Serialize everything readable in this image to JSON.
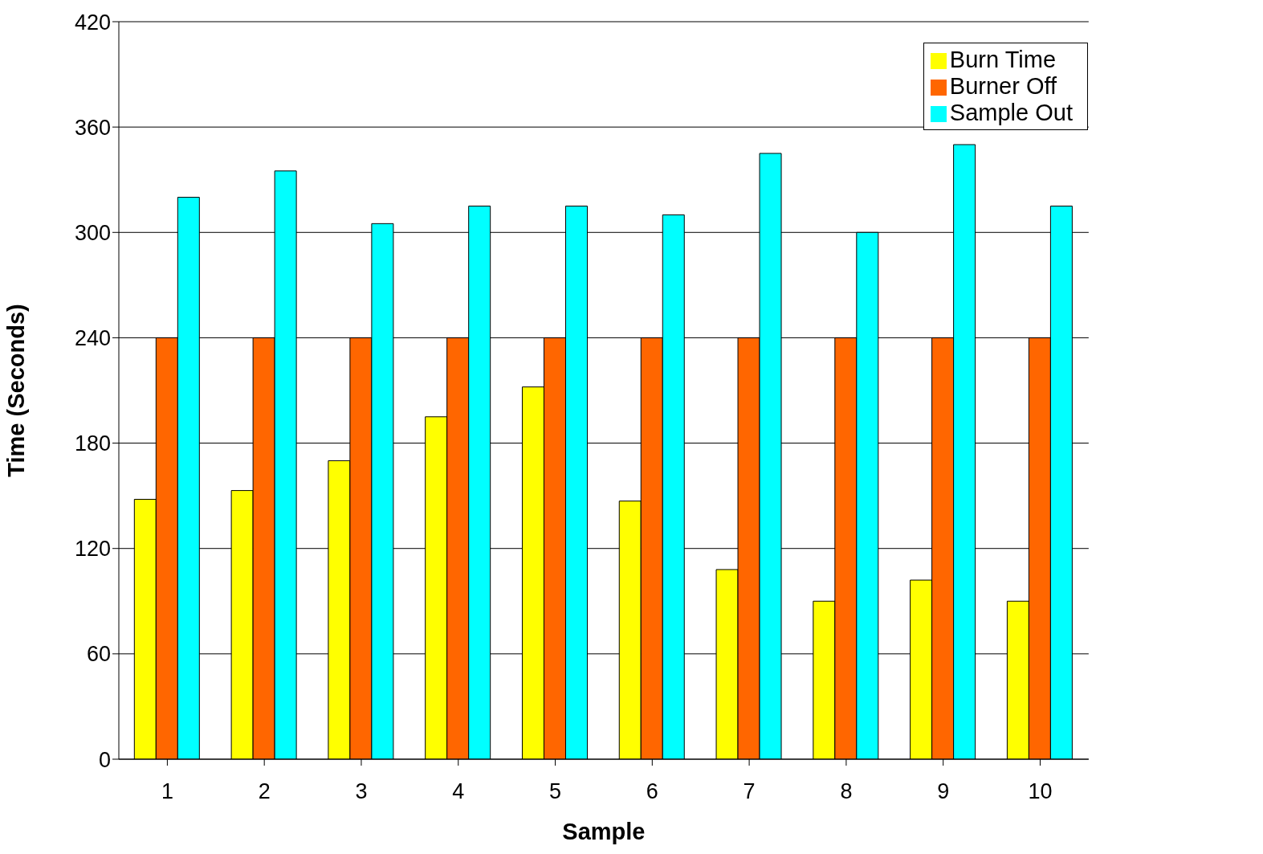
{
  "chart_data": {
    "type": "bar",
    "xlabel": "Sample",
    "ylabel": "Time (Seconds)",
    "categories": [
      "1",
      "2",
      "3",
      "4",
      "5",
      "6",
      "7",
      "8",
      "9",
      "10"
    ],
    "series": [
      {
        "name": "Burn Time",
        "color": "#ffff00",
        "values": [
          148,
          153,
          170,
          195,
          212,
          147,
          108,
          90,
          102,
          90
        ]
      },
      {
        "name": "Burner Off",
        "color": "#ff6600",
        "values": [
          240,
          240,
          240,
          240,
          240,
          240,
          240,
          240,
          240,
          240
        ]
      },
      {
        "name": "Sample Out",
        "color": "#00ffff",
        "values": [
          320,
          335,
          305,
          315,
          315,
          310,
          345,
          300,
          350,
          315
        ]
      }
    ],
    "ylim": [
      0,
      420
    ],
    "yticks": [
      0,
      60,
      120,
      180,
      240,
      300,
      360,
      420
    ],
    "grid": "y",
    "legend": "top right"
  }
}
